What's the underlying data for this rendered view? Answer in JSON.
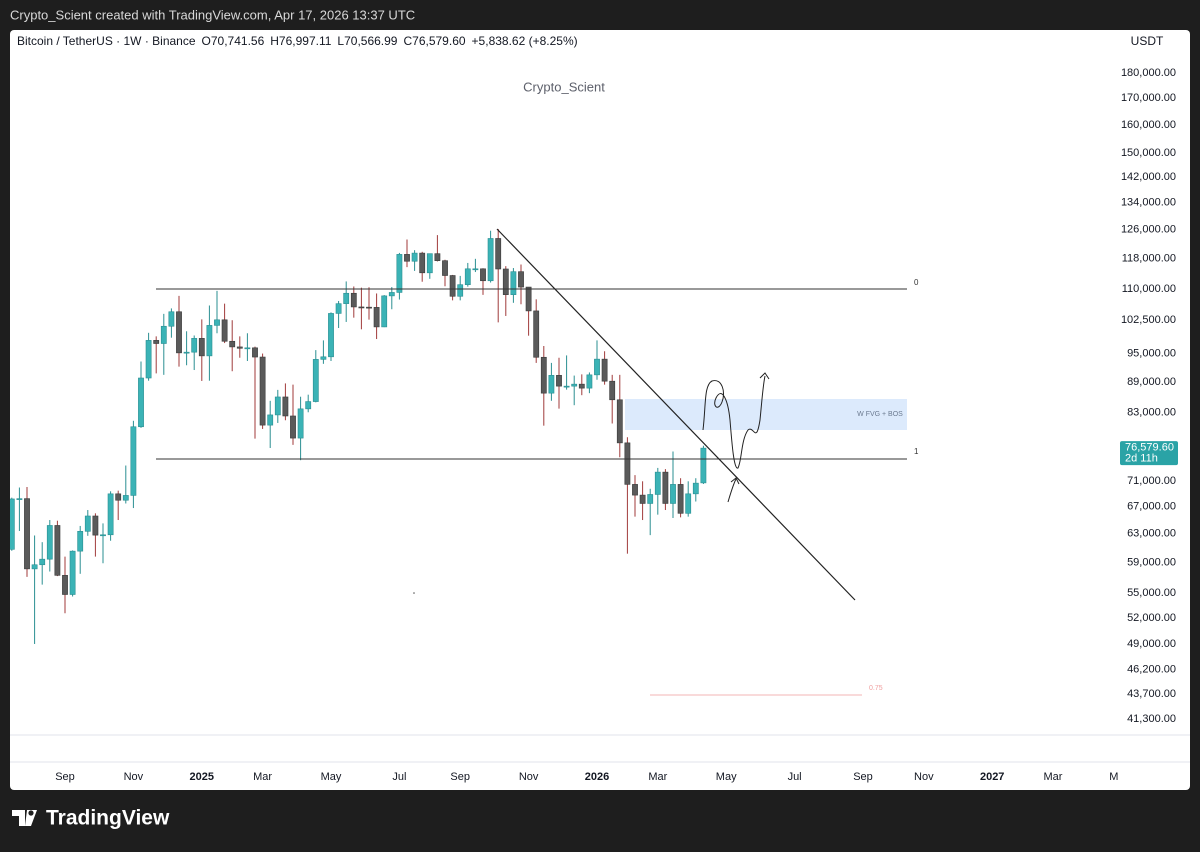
{
  "header": {
    "attribution": "Crypto_Scient created with TradingView.com, Apr 17, 2026 13:37 UTC",
    "brand": "TradingView"
  },
  "chart_data": {
    "type": "candlestick",
    "symbol": "Bitcoin / TetherUS · 1W · Binance",
    "ohlc_legend": [
      "O70,741.56",
      "H76,997.11",
      "L70,566.99",
      "C76,579.60",
      "+5,838.62 (+8.25%)"
    ],
    "currency": "USDT",
    "watermark": "Crypto_Scient",
    "last_price_label": "76,579.60",
    "countdown": "2d 11h",
    "annotations": [
      "0",
      "1",
      "W FVG + BOS",
      "0.75"
    ],
    "log_scale": true,
    "grid": false,
    "up_color": "#3bb3b6",
    "up_wick": "#2a8f92",
    "down_color": "#5a5a5a",
    "down_wick": "#a03a3a",
    "tag_color": "#2aa3a6",
    "ylim": [
      40000,
      200000
    ],
    "yticks": [
      {
        "value": 180000,
        "label": "180,000.00"
      },
      {
        "value": 170000,
        "label": "170,000.00"
      },
      {
        "value": 160000,
        "label": "160,000.00"
      },
      {
        "value": 150000,
        "label": "150,000.00"
      },
      {
        "value": 142000,
        "label": "142,000.00"
      },
      {
        "value": 134000,
        "label": "134,000.00"
      },
      {
        "value": 126000,
        "label": "126,000.00"
      },
      {
        "value": 118000,
        "label": "118,000.00"
      },
      {
        "value": 110000,
        "label": "110,000.00"
      },
      {
        "value": 102500,
        "label": "102,500.00"
      },
      {
        "value": 95000,
        "label": "95,000.00"
      },
      {
        "value": 89000,
        "label": "89,000.00"
      },
      {
        "value": 83000,
        "label": "83,000.00"
      },
      {
        "value": 71000,
        "label": "71,000.00"
      },
      {
        "value": 67000,
        "label": "67,000.00"
      },
      {
        "value": 63000,
        "label": "63,000.00"
      },
      {
        "value": 59000,
        "label": "59,000.00"
      },
      {
        "value": 55000,
        "label": "55,000.00"
      },
      {
        "value": 52000,
        "label": "52,000.00"
      },
      {
        "value": 49000,
        "label": "49,000.00"
      },
      {
        "value": 46200,
        "label": "46,200.00"
      },
      {
        "value": 43700,
        "label": "43,700.00"
      },
      {
        "value": 41300,
        "label": "41,300.00"
      }
    ],
    "categories": [
      null,
      null,
      null,
      null,
      null,
      null,
      null,
      "Sep",
      null,
      null,
      null,
      null,
      null,
      null,
      null,
      null,
      "Nov",
      null,
      null,
      null,
      null,
      null,
      null,
      null,
      null,
      "2025",
      null,
      null,
      null,
      null,
      null,
      null,
      null,
      "Mar",
      null,
      null,
      null,
      null,
      null,
      null,
      null,
      null,
      "May",
      null,
      null,
      null,
      null,
      null,
      null,
      null,
      null,
      "Jul",
      null,
      null,
      null,
      null,
      null,
      null,
      null,
      "Sep",
      null,
      null,
      null,
      null,
      null,
      null,
      null,
      null,
      "Nov",
      null,
      null,
      null,
      null,
      null,
      null,
      null,
      null,
      "2026",
      null,
      null,
      null,
      null,
      null,
      null,
      null,
      "Mar",
      null,
      null,
      null,
      null,
      null,
      null,
      null,
      null,
      "May",
      null,
      null,
      null,
      null,
      null,
      null,
      null,
      null,
      "Jul",
      null,
      null,
      null,
      null,
      null,
      null,
      null,
      null,
      "Sep",
      null,
      null,
      null,
      null,
      null,
      null,
      null,
      "Nov",
      null,
      null,
      null,
      null,
      null,
      null,
      null,
      null,
      "2027",
      null,
      null,
      null,
      null,
      null,
      null,
      null,
      "Mar",
      null,
      null,
      null,
      null,
      null,
      null,
      null,
      "M",
      null
    ],
    "open": [
      60800,
      68200,
      68250,
      58150,
      58700,
      59450,
      64200,
      57300,
      54850,
      60550,
      63350,
      65600,
      62800,
      62850,
      69000,
      68000,
      68750,
      80400,
      89850,
      97900,
      97200,
      101100,
      104500,
      95150,
      95300,
      98350,
      94500,
      101300,
      102600,
      97700,
      96450,
      96150,
      96250,
      94250,
      80700,
      82600,
      86050,
      82400,
      78350,
      83750,
      85150,
      93750,
      94300,
      104100,
      106450,
      109000,
      105650,
      105600,
      105550,
      100950,
      108350,
      109200,
      119100,
      117250,
      119450,
      114200,
      119300,
      117400,
      113500,
      108250,
      111150,
      115250,
      115250,
      112150,
      123500,
      115200,
      108650,
      114500,
      110550,
      104700,
      94200,
      86800,
      90400,
      88200,
      88200,
      88600,
      87800,
      90500,
      93800,
      89200,
      85500,
      77500,
      70500,
      68800,
      67500,
      68900,
      72500,
      67500,
      70500,
      66000,
      69000,
      70741.56,
      null,
      null,
      null,
      null,
      null,
      null,
      null,
      null,
      null,
      null,
      null,
      null,
      null,
      null,
      null,
      null,
      null,
      null,
      null,
      null,
      null,
      null,
      null,
      null,
      null,
      null,
      null,
      null,
      null,
      null,
      null,
      null,
      null,
      null,
      null,
      null,
      null,
      null,
      null,
      null,
      null,
      null,
      null,
      null,
      null,
      null,
      null,
      null,
      null,
      null,
      null,
      null,
      null,
      null,
      null
    ],
    "high": [
      68400,
      70000,
      70080,
      62750,
      61800,
      65000,
      64900,
      59800,
      60650,
      64130,
      66500,
      66000,
      64500,
      69400,
      69500,
      73600,
      81500,
      93300,
      99600,
      98800,
      104000,
      105300,
      108350,
      99950,
      99000,
      102700,
      106000,
      109600,
      106450,
      102500,
      98800,
      99500,
      96500,
      95000,
      85300,
      87450,
      88750,
      88500,
      86100,
      86500,
      95750,
      97900,
      104350,
      107100,
      111980,
      110700,
      110400,
      110500,
      108950,
      108550,
      110550,
      119500,
      123200,
      120250,
      119800,
      119300,
      124450,
      117650,
      113650,
      113400,
      116800,
      117900,
      115400,
      125700,
      126200,
      115950,
      115450,
      116400,
      110550,
      107500,
      96650,
      93000,
      94100,
      94600,
      90350,
      90600,
      91000,
      97900,
      95500,
      90500,
      90500,
      78500,
      72000,
      71000,
      69800,
      73200,
      73000,
      76000,
      71500,
      71000,
      71500,
      76997.11,
      null,
      null,
      null,
      null,
      null,
      null,
      null,
      null,
      null,
      null,
      null,
      null,
      null,
      null,
      null,
      null,
      null,
      null,
      null,
      null,
      null,
      null,
      null,
      null,
      null,
      null,
      null,
      null,
      null,
      null,
      null,
      null,
      null,
      null,
      null,
      null,
      null,
      null,
      null,
      null,
      null,
      null,
      null,
      null,
      null,
      null,
      null,
      null,
      null,
      null,
      null,
      null,
      null,
      null,
      null
    ],
    "low": [
      60600,
      63400,
      57100,
      49000,
      56100,
      57800,
      57200,
      52550,
      54600,
      57500,
      62700,
      59800,
      58900,
      62000,
      65000,
      67500,
      66800,
      80200,
      89300,
      90800,
      90500,
      98500,
      92200,
      92500,
      91500,
      89250,
      89300,
      99500,
      97300,
      91250,
      94100,
      93400,
      78250,
      80000,
      76600,
      81100,
      81600,
      77150,
      74500,
      83100,
      85000,
      92800,
      93400,
      100700,
      102100,
      103100,
      100400,
      102650,
      98200,
      100900,
      105100,
      107450,
      115700,
      114700,
      111900,
      112650,
      117200,
      110750,
      107250,
      107250,
      110650,
      114400,
      108600,
      111700,
      102000,
      103500,
      106650,
      106300,
      98950,
      93000,
      80600,
      85300,
      83800,
      87500,
      84450,
      86400,
      86800,
      89500,
      88500,
      81000,
      75000,
      60200,
      65500,
      65000,
      62800,
      65800,
      66500,
      65300,
      65400,
      65500,
      67800,
      70566.99,
      null,
      null,
      null,
      null,
      null,
      null,
      null,
      null,
      null,
      null,
      null,
      null,
      null,
      null,
      null,
      null,
      null,
      null,
      null,
      null,
      null,
      null,
      null,
      null,
      null,
      null,
      null,
      null,
      null,
      null,
      null,
      null,
      null,
      null,
      null,
      null,
      null,
      null,
      null,
      null,
      null,
      null,
      null,
      null,
      null,
      null,
      null,
      null,
      null,
      null,
      null,
      null,
      null,
      null,
      null
    ],
    "close": [
      68200,
      68250,
      58150,
      58700,
      59450,
      64200,
      57300,
      54850,
      60550,
      63350,
      65600,
      62800,
      62850,
      69000,
      68000,
      68750,
      80400,
      89850,
      97900,
      97200,
      101100,
      104500,
      95150,
      95300,
      98350,
      94500,
      101300,
      102600,
      97700,
      96450,
      96150,
      96250,
      94250,
      80700,
      82600,
      86050,
      82400,
      78350,
      83750,
      85150,
      93750,
      94300,
      104100,
      106450,
      109000,
      105650,
      105600,
      105550,
      100950,
      108350,
      109200,
      119100,
      117250,
      119450,
      114200,
      119300,
      117400,
      113500,
      108250,
      111150,
      115250,
      115250,
      112150,
      123500,
      115200,
      108650,
      114500,
      110550,
      104700,
      94200,
      86800,
      90400,
      88200,
      88200,
      88600,
      87800,
      90500,
      93800,
      89200,
      85500,
      77500,
      70500,
      68800,
      67500,
      68900,
      72500,
      67500,
      70500,
      66000,
      69000,
      70700,
      76579.6,
      null,
      null,
      null,
      null,
      null,
      null,
      null,
      null,
      null,
      null,
      null,
      null,
      null,
      null,
      null,
      null,
      null,
      null,
      null,
      null,
      null,
      null,
      null,
      null,
      null,
      null,
      null,
      null,
      null,
      null,
      null,
      null,
      null,
      null,
      null,
      null,
      null,
      null,
      null,
      null,
      null,
      null,
      null,
      null,
      null,
      null,
      null,
      null,
      null,
      null,
      null,
      null,
      null,
      null,
      null
    ]
  }
}
